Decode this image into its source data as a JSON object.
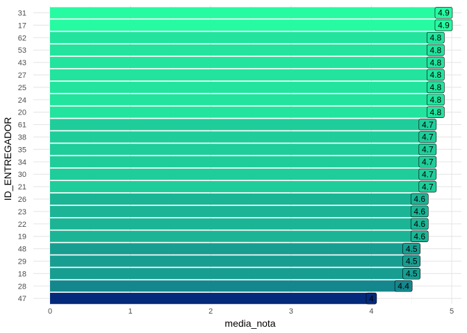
{
  "chart_data": {
    "type": "bar",
    "orientation": "horizontal",
    "xlabel": "media_nota",
    "ylabel": "ID_ENTREGADOR",
    "xlim": [
      0,
      5.1
    ],
    "x_ticks": [
      "0",
      "1",
      "2",
      "3",
      "4",
      "5"
    ],
    "grid": true,
    "color_low": "#052a7c",
    "color_high": "#26fba2",
    "categories": [
      "31",
      "17",
      "62",
      "53",
      "43",
      "27",
      "25",
      "24",
      "20",
      "61",
      "38",
      "35",
      "34",
      "30",
      "21",
      "26",
      "23",
      "22",
      "19",
      "48",
      "29",
      "18",
      "28",
      "47"
    ],
    "values": [
      4.9,
      4.9,
      4.8,
      4.8,
      4.8,
      4.8,
      4.8,
      4.8,
      4.8,
      4.7,
      4.7,
      4.7,
      4.7,
      4.7,
      4.7,
      4.6,
      4.6,
      4.6,
      4.6,
      4.5,
      4.5,
      4.5,
      4.4,
      4
    ],
    "labels": [
      "4.9",
      "4.9",
      "4.8",
      "4.8",
      "4.8",
      "4.8",
      "4.8",
      "4.8",
      "4.8",
      "4.7",
      "4.7",
      "4.7",
      "4.7",
      "4.7",
      "4.7",
      "4.6",
      "4.6",
      "4.6",
      "4.6",
      "4.5",
      "4.5",
      "4.5",
      "4.4",
      "4"
    ]
  }
}
